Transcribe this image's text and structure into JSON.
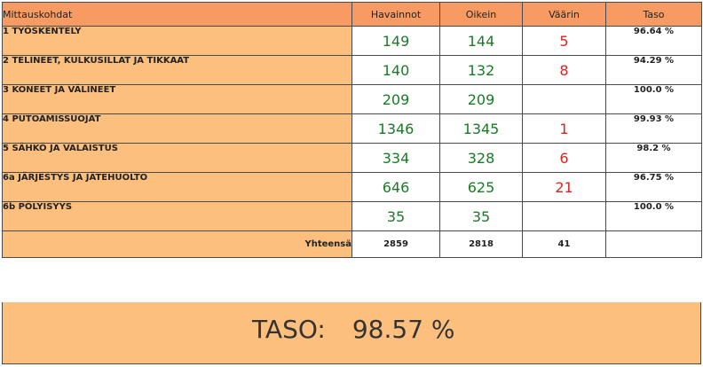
{
  "headers": {
    "location": "Mittauskohdat",
    "observations": "Havainnot",
    "correct": "Oikein",
    "wrong": "Väärin",
    "level": "Taso"
  },
  "rows": [
    {
      "label": "1 TYÖSKENTELY",
      "observations": "149",
      "correct": "144",
      "wrong": "5",
      "level": "96.64 %"
    },
    {
      "label": "2 TELINEET, KULKUSILLAT JA TIKKAAT",
      "observations": "140",
      "correct": "132",
      "wrong": "8",
      "level": "94.29 %"
    },
    {
      "label": "3 KONEET JA VÄLINEET",
      "observations": "209",
      "correct": "209",
      "wrong": "",
      "level": "100.0 %"
    },
    {
      "label": "4 PUTOAMISSUOJAT",
      "observations": "1346",
      "correct": "1345",
      "wrong": "1",
      "level": "99.93 %"
    },
    {
      "label": "5 SÄHKÖ JA VALAISTUS",
      "observations": "334",
      "correct": "328",
      "wrong": "6",
      "level": "98.2 %"
    },
    {
      "label": "6a JÄRJESTYS JA JÄTEHUOLTO",
      "observations": "646",
      "correct": "625",
      "wrong": "21",
      "level": "96.75 %"
    },
    {
      "label": "6b PÖLYISYYS",
      "observations": "35",
      "correct": "35",
      "wrong": "",
      "level": "100.0 %"
    }
  ],
  "totals": {
    "label": "Yhteensä",
    "observations": "2859",
    "correct": "2818",
    "wrong": "41"
  },
  "summary": {
    "label": "TASO:",
    "value": "98.57 %"
  },
  "colors": {
    "header_bg": "#f79b63",
    "label_bg": "#fcbf7e",
    "correct_text": "#1a7a25",
    "wrong_text": "#e0211f"
  }
}
